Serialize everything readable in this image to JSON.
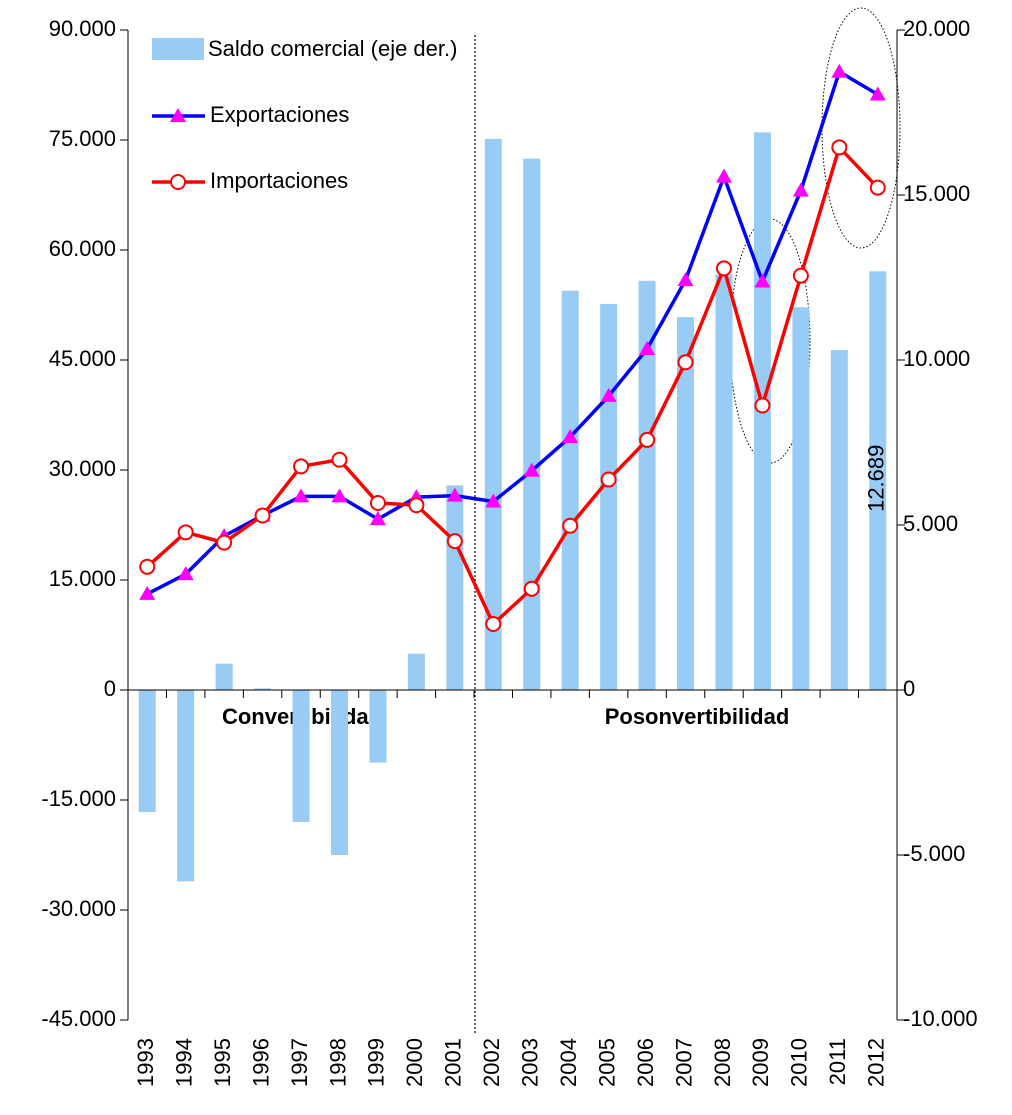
{
  "chart_data": {
    "type": "bar-line",
    "categories": [
      "1993",
      "1994",
      "1995",
      "1996",
      "1997",
      "1998",
      "1999",
      "2000",
      "2001",
      "2002",
      "2003",
      "2004",
      "2005",
      "2006",
      "2007",
      "2008",
      "2009",
      "2010",
      "2011",
      "2012"
    ],
    "series": [
      {
        "name": "Saldo comercial (eje der.)",
        "type": "bar",
        "axis": "y2",
        "color": "#99ccf5",
        "values": [
          -3700,
          -5800,
          800,
          50,
          -4000,
          -5000,
          -2200,
          1100,
          6200,
          16700,
          16100,
          12100,
          11700,
          12400,
          11300,
          12600,
          16900,
          11600,
          10300,
          12689
        ],
        "value_labels": [
          null,
          null,
          null,
          null,
          null,
          null,
          null,
          null,
          null,
          null,
          null,
          null,
          null,
          null,
          null,
          null,
          null,
          null,
          null,
          "12.689"
        ]
      },
      {
        "name": "Exportaciones",
        "type": "line",
        "color": "#0000ff",
        "marker": "triangle",
        "marker_color": "#ff00ff",
        "values": [
          13100,
          15800,
          21000,
          23800,
          26400,
          26400,
          23300,
          26300,
          26500,
          25700,
          29900,
          34500,
          40100,
          46500,
          55900,
          70000,
          55700,
          68100,
          84300,
          81200
        ]
      },
      {
        "name": "Importaciones",
        "type": "line",
        "color": "#ff0000",
        "marker": "circle",
        "marker_color": "#ffffff",
        "values": [
          16800,
          21500,
          20100,
          23800,
          30500,
          31400,
          25500,
          25200,
          20300,
          9000,
          13800,
          22400,
          28700,
          34100,
          44700,
          57500,
          38800,
          56500,
          74000,
          68500
        ]
      }
    ],
    "ylim": [
      -45000,
      90000
    ],
    "yticks": [
      {
        "value": -45000,
        "label": "-45.000"
      },
      {
        "value": -30000,
        "label": "-30.000"
      },
      {
        "value": -15000,
        "label": "-15.000"
      },
      0,
      {
        "value": 15000,
        "label": "15.000"
      },
      {
        "value": 30000,
        "label": "30.000"
      },
      {
        "value": 45000,
        "label": "45.000"
      },
      {
        "value": 60000,
        "label": "60.000"
      },
      {
        "value": 75000,
        "label": "75.000"
      },
      {
        "value": 90000,
        "label": "90.000"
      }
    ],
    "y2lim": [
      -10000,
      20000
    ],
    "y2ticks": [
      {
        "value": -10000,
        "label": "-10.000"
      },
      {
        "value": -5000,
        "label": "-5.000"
      },
      0,
      {
        "value": 5000,
        "label": "5.000"
      },
      {
        "value": 10000,
        "label": "10.000"
      },
      {
        "value": 15000,
        "label": "15.000"
      },
      {
        "value": 20000,
        "label": "20.000"
      }
    ],
    "annotations": [
      "Convertibilidad",
      "Posonvertibilidad"
    ]
  }
}
